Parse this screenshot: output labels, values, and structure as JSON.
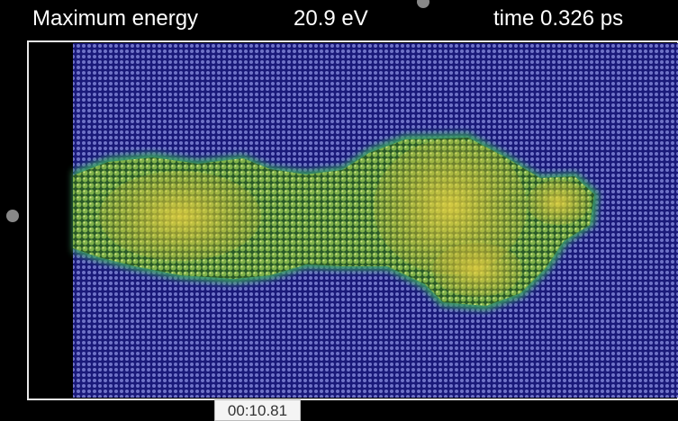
{
  "header": {
    "label": "Maximum energy",
    "energy": "20.9 eV",
    "time": "time 0.326 ps"
  },
  "player": {
    "timestamp": "00:10.81"
  }
}
